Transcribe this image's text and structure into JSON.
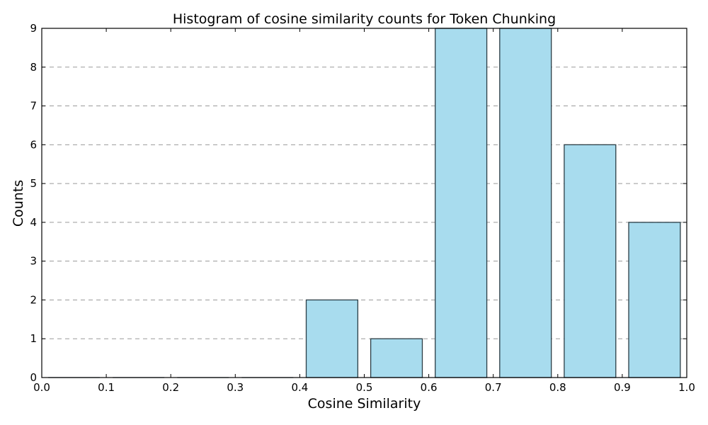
{
  "chart_data": {
    "type": "bar",
    "title": "Histogram of cosine similarity counts for Token Chunking",
    "xlabel": "Cosine Similarity",
    "ylabel": "Counts",
    "xlim": [
      0.0,
      1.0
    ],
    "ylim": [
      0,
      9
    ],
    "x_ticks": [
      "0.0",
      "0.1",
      "0.2",
      "0.3",
      "0.4",
      "0.5",
      "0.6",
      "0.7",
      "0.8",
      "0.9",
      "1.0"
    ],
    "y_ticks": [
      "0",
      "1",
      "2",
      "3",
      "4",
      "5",
      "6",
      "7",
      "8",
      "9"
    ],
    "bins": [
      {
        "start": 0.0,
        "end": 0.1,
        "count": 0
      },
      {
        "start": 0.1,
        "end": 0.2,
        "count": 0
      },
      {
        "start": 0.2,
        "end": 0.3,
        "count": 0
      },
      {
        "start": 0.3,
        "end": 0.4,
        "count": 0
      },
      {
        "start": 0.4,
        "end": 0.5,
        "count": 2
      },
      {
        "start": 0.5,
        "end": 0.6,
        "count": 1
      },
      {
        "start": 0.6,
        "end": 0.7,
        "count": 9
      },
      {
        "start": 0.7,
        "end": 0.8,
        "count": 9
      },
      {
        "start": 0.8,
        "end": 0.9,
        "count": 6
      },
      {
        "start": 0.9,
        "end": 1.0,
        "count": 4
      }
    ],
    "grid": "y-dashed",
    "bar_color": "#a8dcee",
    "edge_color": "#2b3d45",
    "grid_color": "#9a9a9a"
  }
}
